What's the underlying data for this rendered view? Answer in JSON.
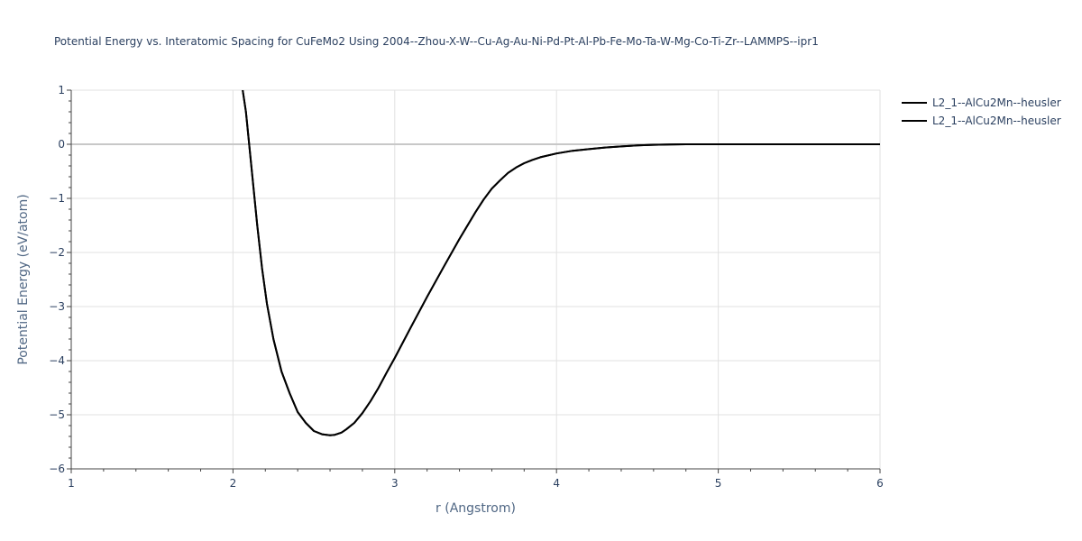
{
  "chart_data": {
    "type": "line",
    "title": "Potential Energy vs. Interatomic Spacing for CuFeMo2 Using 2004--Zhou-X-W--Cu-Ag-Au-Ni-Pd-Pt-Al-Pb-Fe-Mo-Ta-W-Mg-Co-Ti-Zr--LAMMPS--ipr1",
    "xlabel": "r (Angstrom)",
    "ylabel": "Potential Energy (eV/atom)",
    "xlim": [
      1,
      6
    ],
    "ylim": [
      -6,
      1
    ],
    "x_ticks": [
      1,
      2,
      3,
      4,
      5,
      6
    ],
    "x_tick_labels": [
      "1",
      "2",
      "3",
      "4",
      "5",
      "6"
    ],
    "y_ticks": [
      1,
      0,
      -1,
      -2,
      -3,
      -4,
      -5,
      -6
    ],
    "y_tick_labels": [
      "1",
      "0",
      "−1",
      "−2",
      "−3",
      "−4",
      "−5",
      "−6"
    ],
    "grid": true,
    "legend_position": "top-right",
    "series": [
      {
        "name": "L2_1--AlCu2Mn--heusler",
        "color": "#000000",
        "x": [
          2.06,
          2.08,
          2.1,
          2.12,
          2.15,
          2.18,
          2.21,
          2.25,
          2.3,
          2.35,
          2.4,
          2.45,
          2.5,
          2.55,
          2.6,
          2.63,
          2.67,
          2.7,
          2.75,
          2.8,
          2.85,
          2.9,
          2.95,
          3.0,
          3.1,
          3.2,
          3.3,
          3.4,
          3.5,
          3.55,
          3.6,
          3.65,
          3.7,
          3.75,
          3.8,
          3.85,
          3.9,
          4.0,
          4.1,
          4.2,
          4.3,
          4.4,
          4.5,
          4.6,
          4.7,
          4.8,
          5.0,
          5.5,
          6.0
        ],
        "y": [
          1.0,
          0.6,
          0.0,
          -0.6,
          -1.5,
          -2.3,
          -2.95,
          -3.6,
          -4.2,
          -4.6,
          -4.95,
          -5.15,
          -5.3,
          -5.36,
          -5.38,
          -5.37,
          -5.33,
          -5.27,
          -5.15,
          -4.97,
          -4.75,
          -4.5,
          -4.22,
          -3.95,
          -3.38,
          -2.82,
          -2.28,
          -1.75,
          -1.25,
          -1.02,
          -0.82,
          -0.67,
          -0.53,
          -0.43,
          -0.35,
          -0.29,
          -0.24,
          -0.17,
          -0.12,
          -0.09,
          -0.06,
          -0.04,
          -0.02,
          -0.01,
          -0.005,
          0.0,
          0.0,
          0.0,
          0.0
        ]
      },
      {
        "name": "L2_1--AlCu2Mn--heusler",
        "color": "#000000",
        "x": [
          2.06,
          2.08,
          2.1,
          2.12,
          2.15,
          2.18,
          2.21,
          2.25,
          2.3,
          2.35,
          2.4,
          2.45,
          2.5,
          2.55,
          2.6,
          2.63,
          2.67,
          2.7,
          2.75,
          2.8,
          2.85,
          2.9,
          2.95,
          3.0,
          3.1,
          3.2,
          3.3,
          3.4,
          3.5,
          3.55,
          3.6,
          3.65,
          3.7,
          3.75,
          3.8,
          3.85,
          3.9,
          4.0,
          4.1,
          4.2,
          4.3,
          4.4,
          4.5,
          4.6,
          4.7,
          4.8,
          5.0,
          5.5,
          6.0
        ],
        "y": [
          1.0,
          0.6,
          0.0,
          -0.6,
          -1.5,
          -2.3,
          -2.95,
          -3.6,
          -4.2,
          -4.6,
          -4.95,
          -5.15,
          -5.3,
          -5.36,
          -5.38,
          -5.37,
          -5.33,
          -5.27,
          -5.15,
          -4.97,
          -4.75,
          -4.5,
          -4.22,
          -3.95,
          -3.38,
          -2.82,
          -2.28,
          -1.75,
          -1.25,
          -1.02,
          -0.82,
          -0.67,
          -0.53,
          -0.43,
          -0.35,
          -0.29,
          -0.24,
          -0.17,
          -0.12,
          -0.09,
          -0.06,
          -0.04,
          -0.02,
          -0.01,
          -0.005,
          0.0,
          0.0,
          0.0,
          0.0
        ]
      }
    ]
  }
}
